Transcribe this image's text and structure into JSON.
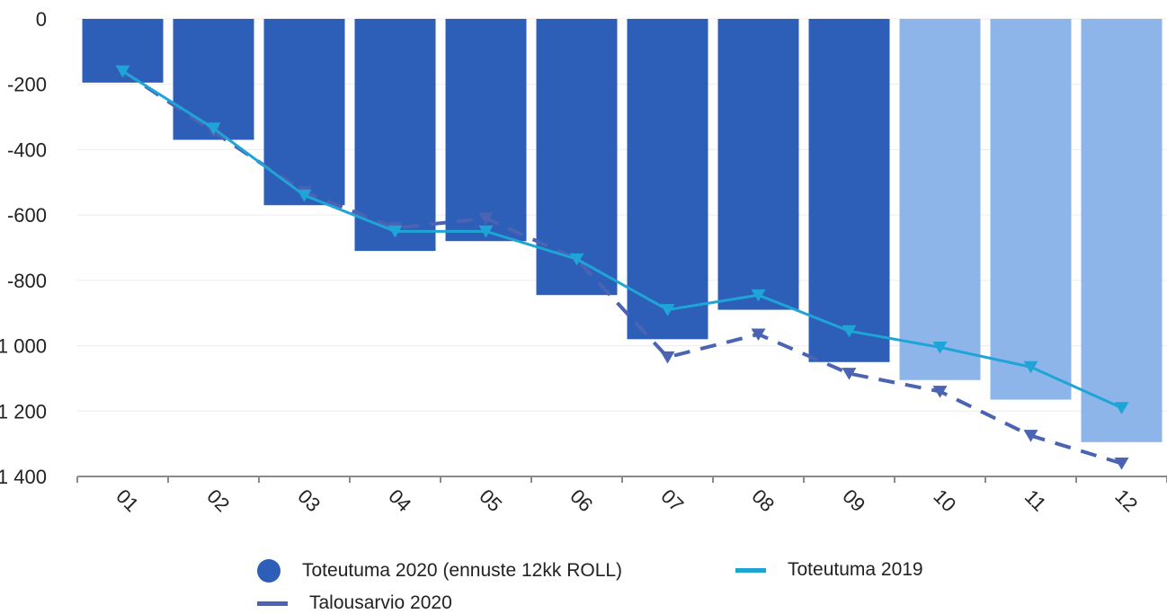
{
  "chart_data": {
    "type": "bar",
    "categories": [
      "01",
      "02",
      "03",
      "04",
      "05",
      "06",
      "07",
      "08",
      "09",
      "10",
      "11",
      "12"
    ],
    "ylim": [
      -1400,
      0
    ],
    "yticks": [
      0,
      -200,
      -400,
      -600,
      -800,
      -1000,
      -1200,
      -1400
    ],
    "ytick_labels": [
      "0",
      "-200",
      "-400",
      "-600",
      "-800",
      "-1 000",
      "-1 200",
      "-1 400"
    ],
    "grid": true,
    "legend_position": "bottom",
    "title": "",
    "xlabel": "",
    "ylabel": "",
    "series": [
      {
        "name": "Toteutuma 2020 (ennuste 12kk ROLL)",
        "type": "bar",
        "values": [
          -195,
          -370,
          -570,
          -710,
          -680,
          -845,
          -980,
          -890,
          -1050,
          -1105,
          -1165,
          -1295
        ],
        "colors": [
          "#2e5fb8",
          "#2e5fb8",
          "#2e5fb8",
          "#2e5fb8",
          "#2e5fb8",
          "#2e5fb8",
          "#2e5fb8",
          "#2e5fb8",
          "#2e5fb8",
          "#8db5ea",
          "#8db5ea",
          "#8db5ea"
        ]
      },
      {
        "name": "Talousarvio 2020",
        "type": "line",
        "style": "dashed",
        "marker": "triangle-down",
        "color": "#4a63b3",
        "values": [
          -160,
          -345,
          -530,
          -640,
          -610,
          -735,
          -1035,
          -965,
          -1085,
          -1140,
          -1275,
          -1360
        ]
      },
      {
        "name": "Toteutuma 2019",
        "type": "line",
        "style": "solid",
        "marker": "triangle-down",
        "color": "#1fa4d8",
        "values": [
          -160,
          -335,
          -540,
          -650,
          -650,
          -735,
          -890,
          -845,
          -955,
          -1005,
          -1065,
          -1190
        ]
      }
    ]
  }
}
